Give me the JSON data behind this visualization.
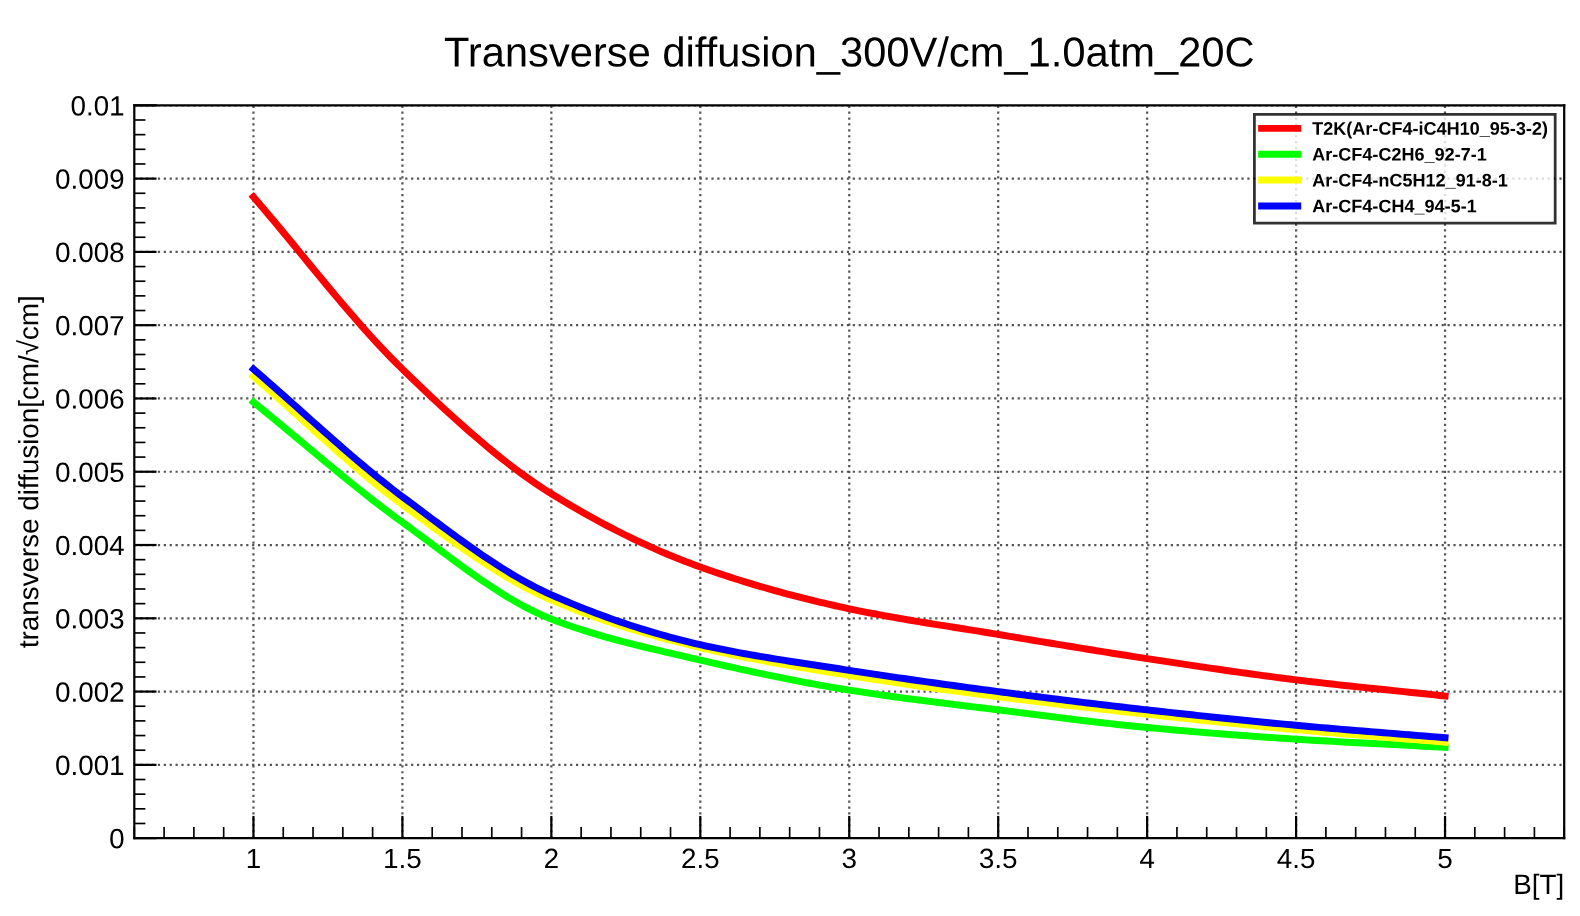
{
  "chart_data": {
    "type": "line",
    "title": "Transverse diffusion_300V/cm_1.0atm_20C",
    "xlabel": "B[T]",
    "ylabel": "transverse diffusion[cm/√cm]",
    "x": [
      1,
      1.5,
      2,
      2.5,
      3,
      3.5,
      4,
      4.5,
      5
    ],
    "series": [
      {
        "name": "T2K(Ar-CF4-iC4H10_95-3-2)",
        "color": "#ff0000",
        "values": [
          0.00875,
          0.0064,
          0.0047,
          0.0037,
          0.00313,
          0.00278,
          0.00245,
          0.00216,
          0.00194
        ]
      },
      {
        "name": "Ar-CF4-C2H6_92-7-1",
        "color": "#00ff00",
        "values": [
          0.00595,
          0.00431,
          0.00299,
          0.00243,
          0.00202,
          0.00175,
          0.00151,
          0.00135,
          0.00124
        ]
      },
      {
        "name": "Ar-CF4-nC5H12_91-8-1",
        "color": "#ffff00",
        "values": [
          0.0063,
          0.00455,
          0.00325,
          0.0026,
          0.00222,
          0.00193,
          0.00169,
          0.00148,
          0.00131
        ]
      },
      {
        "name": "Ar-CF4-CH4_94-5-1",
        "color": "#0000ff",
        "values": [
          0.0064,
          0.00466,
          0.00332,
          0.00264,
          0.00229,
          0.002,
          0.00175,
          0.00154,
          0.00137
        ]
      }
    ],
    "xlim": [
      0.6,
      5.4
    ],
    "ylim": [
      0,
      0.01
    ],
    "xticks": [
      1,
      1.5,
      2,
      2.5,
      3,
      3.5,
      4,
      4.5,
      5
    ],
    "yticks": [
      0,
      0.001,
      0.002,
      0.003,
      0.004,
      0.005,
      0.006,
      0.007,
      0.008,
      0.009,
      0.01
    ],
    "grid": true,
    "legend": "top right",
    "marker": "none",
    "line_style": "solid"
  }
}
